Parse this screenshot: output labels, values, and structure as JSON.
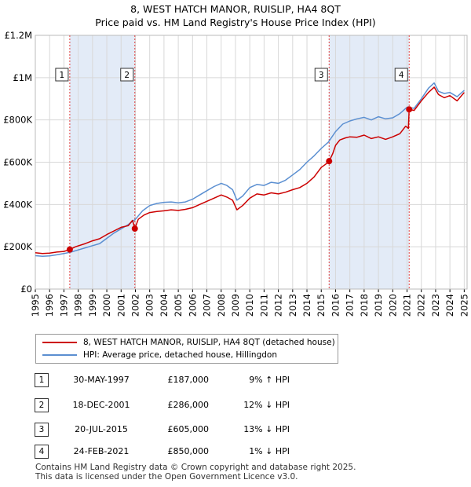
{
  "title": "8, WEST HATCH MANOR, RUISLIP, HA4 8QT",
  "subtitle": "Price paid vs. HM Land Registry's House Price Index (HPI)",
  "colors": {
    "property": "#cc0000",
    "hpi": "#5b8fd1",
    "shade": "#dce6f5",
    "vline": "#e04040"
  },
  "chart_data": {
    "type": "line",
    "title": "8, WEST HATCH MANOR, RUISLIP, HA4 8QT",
    "xlabel": "",
    "ylabel": "",
    "xlim": [
      1995,
      2025.2
    ],
    "ylim": [
      0,
      1200000
    ],
    "x_ticks": [
      "1995",
      "1996",
      "1997",
      "1998",
      "1999",
      "2000",
      "2001",
      "2002",
      "2003",
      "2004",
      "2005",
      "2006",
      "2007",
      "2008",
      "2009",
      "2010",
      "2011",
      "2012",
      "2013",
      "2014",
      "2015",
      "2016",
      "2017",
      "2018",
      "2019",
      "2020",
      "2021",
      "2022",
      "2023",
      "2024",
      "2025"
    ],
    "y_ticks": [
      {
        "value": 0,
        "label": "£0"
      },
      {
        "value": 200000,
        "label": "£200K"
      },
      {
        "value": 400000,
        "label": "£400K"
      },
      {
        "value": 600000,
        "label": "£600K"
      },
      {
        "value": 800000,
        "label": "£800K"
      },
      {
        "value": 1000000,
        "label": "£1M"
      },
      {
        "value": 1200000,
        "label": "£1.2M"
      }
    ],
    "shaded_periods": [
      [
        1997.41,
        2001.96
      ],
      [
        2015.55,
        2021.15
      ]
    ],
    "series": [
      {
        "name": "8, WEST HATCH MANOR, RUISLIP, HA4 8QT (detached house)",
        "color": "#cc0000",
        "x": [
          1995,
          1995.5,
          1996,
          1996.5,
          1997,
          1997.41,
          1997.8,
          1998.5,
          1999,
          1999.5,
          2000,
          2000.5,
          2001,
          2001.5,
          2001.8,
          2001.96,
          2002.2,
          2002.6,
          2003,
          2003.5,
          2004,
          2004.5,
          2005,
          2005.5,
          2006,
          2006.5,
          2007,
          2007.5,
          2008,
          2008.4,
          2008.8,
          2009.1,
          2009.5,
          2010,
          2010.5,
          2011,
          2011.5,
          2012,
          2012.5,
          2013,
          2013.5,
          2014,
          2014.5,
          2015,
          2015.3,
          2015.55,
          2015.8,
          2016,
          2016.3,
          2016.7,
          2017,
          2017.5,
          2018,
          2018.5,
          2019,
          2019.5,
          2020,
          2020.5,
          2020.9,
          2021.1,
          2021.15,
          2021.5,
          2022,
          2022.5,
          2022.9,
          2023.2,
          2023.6,
          2024,
          2024.5,
          2025
        ],
        "y": [
          172000,
          168000,
          170000,
          175000,
          178000,
          187000,
          200000,
          215000,
          228000,
          238000,
          258000,
          275000,
          292000,
          300000,
          325000,
          286000,
          330000,
          350000,
          362000,
          367000,
          370000,
          375000,
          372000,
          377000,
          385000,
          400000,
          415000,
          430000,
          445000,
          435000,
          420000,
          375000,
          395000,
          430000,
          450000,
          445000,
          455000,
          450000,
          458000,
          470000,
          480000,
          500000,
          530000,
          575000,
          590000,
          605000,
          640000,
          680000,
          705000,
          715000,
          720000,
          718000,
          728000,
          712000,
          720000,
          708000,
          720000,
          735000,
          770000,
          760000,
          850000,
          845000,
          890000,
          930000,
          955000,
          920000,
          905000,
          915000,
          890000,
          930000
        ]
      },
      {
        "name": "HPI: Average price, detached house, Hillingdon",
        "color": "#5b8fd1",
        "x": [
          1995,
          1995.5,
          1996,
          1996.5,
          1997,
          1997.5,
          1998,
          1998.5,
          1999,
          1999.5,
          2000,
          2000.5,
          2001,
          2001.5,
          2002,
          2002.5,
          2003,
          2003.5,
          2004,
          2004.5,
          2005,
          2005.5,
          2006,
          2006.5,
          2007,
          2007.5,
          2008,
          2008.4,
          2008.8,
          2009.1,
          2009.5,
          2010,
          2010.5,
          2011,
          2011.5,
          2012,
          2012.5,
          2013,
          2013.5,
          2014,
          2014.5,
          2015,
          2015.5,
          2016,
          2016.5,
          2017,
          2017.5,
          2018,
          2018.5,
          2019,
          2019.5,
          2020,
          2020.5,
          2021,
          2021.5,
          2022,
          2022.5,
          2022.9,
          2023.2,
          2023.6,
          2024,
          2024.5,
          2025
        ],
        "y": [
          158000,
          155000,
          157000,
          162000,
          168000,
          175000,
          185000,
          195000,
          205000,
          215000,
          240000,
          265000,
          285000,
          305000,
          330000,
          370000,
          395000,
          405000,
          410000,
          412000,
          408000,
          412000,
          425000,
          445000,
          465000,
          485000,
          500000,
          490000,
          470000,
          420000,
          440000,
          480000,
          495000,
          490000,
          505000,
          500000,
          515000,
          540000,
          565000,
          600000,
          630000,
          665000,
          695000,
          745000,
          780000,
          795000,
          805000,
          812000,
          800000,
          815000,
          805000,
          810000,
          830000,
          860000,
          855000,
          900000,
          950000,
          975000,
          935000,
          925000,
          930000,
          910000,
          940000
        ]
      }
    ],
    "transactions": [
      {
        "marker": "1",
        "x": 1997.41,
        "y": 187000
      },
      {
        "marker": "2",
        "x": 2001.96,
        "y": 286000
      },
      {
        "marker": "3",
        "x": 2015.55,
        "y": 605000
      },
      {
        "marker": "4",
        "x": 2021.15,
        "y": 850000
      }
    ]
  },
  "legend": {
    "property_label": "8, WEST HATCH MANOR, RUISLIP, HA4 8QT (detached house)",
    "hpi_label": "HPI: Average price, detached house, Hillingdon"
  },
  "transactions_table": [
    {
      "num": "1",
      "date": "30-MAY-1997",
      "price": "£187,000",
      "hpi": "9% ↑ HPI"
    },
    {
      "num": "2",
      "date": "18-DEC-2001",
      "price": "£286,000",
      "hpi": "12% ↓ HPI"
    },
    {
      "num": "3",
      "date": "20-JUL-2015",
      "price": "£605,000",
      "hpi": "13% ↓ HPI"
    },
    {
      "num": "4",
      "date": "24-FEB-2021",
      "price": "£850,000",
      "hpi": "1% ↓ HPI"
    }
  ],
  "footer": {
    "line1": "Contains HM Land Registry data © Crown copyright and database right 2025.",
    "line2": "This data is licensed under the Open Government Licence v3.0."
  }
}
